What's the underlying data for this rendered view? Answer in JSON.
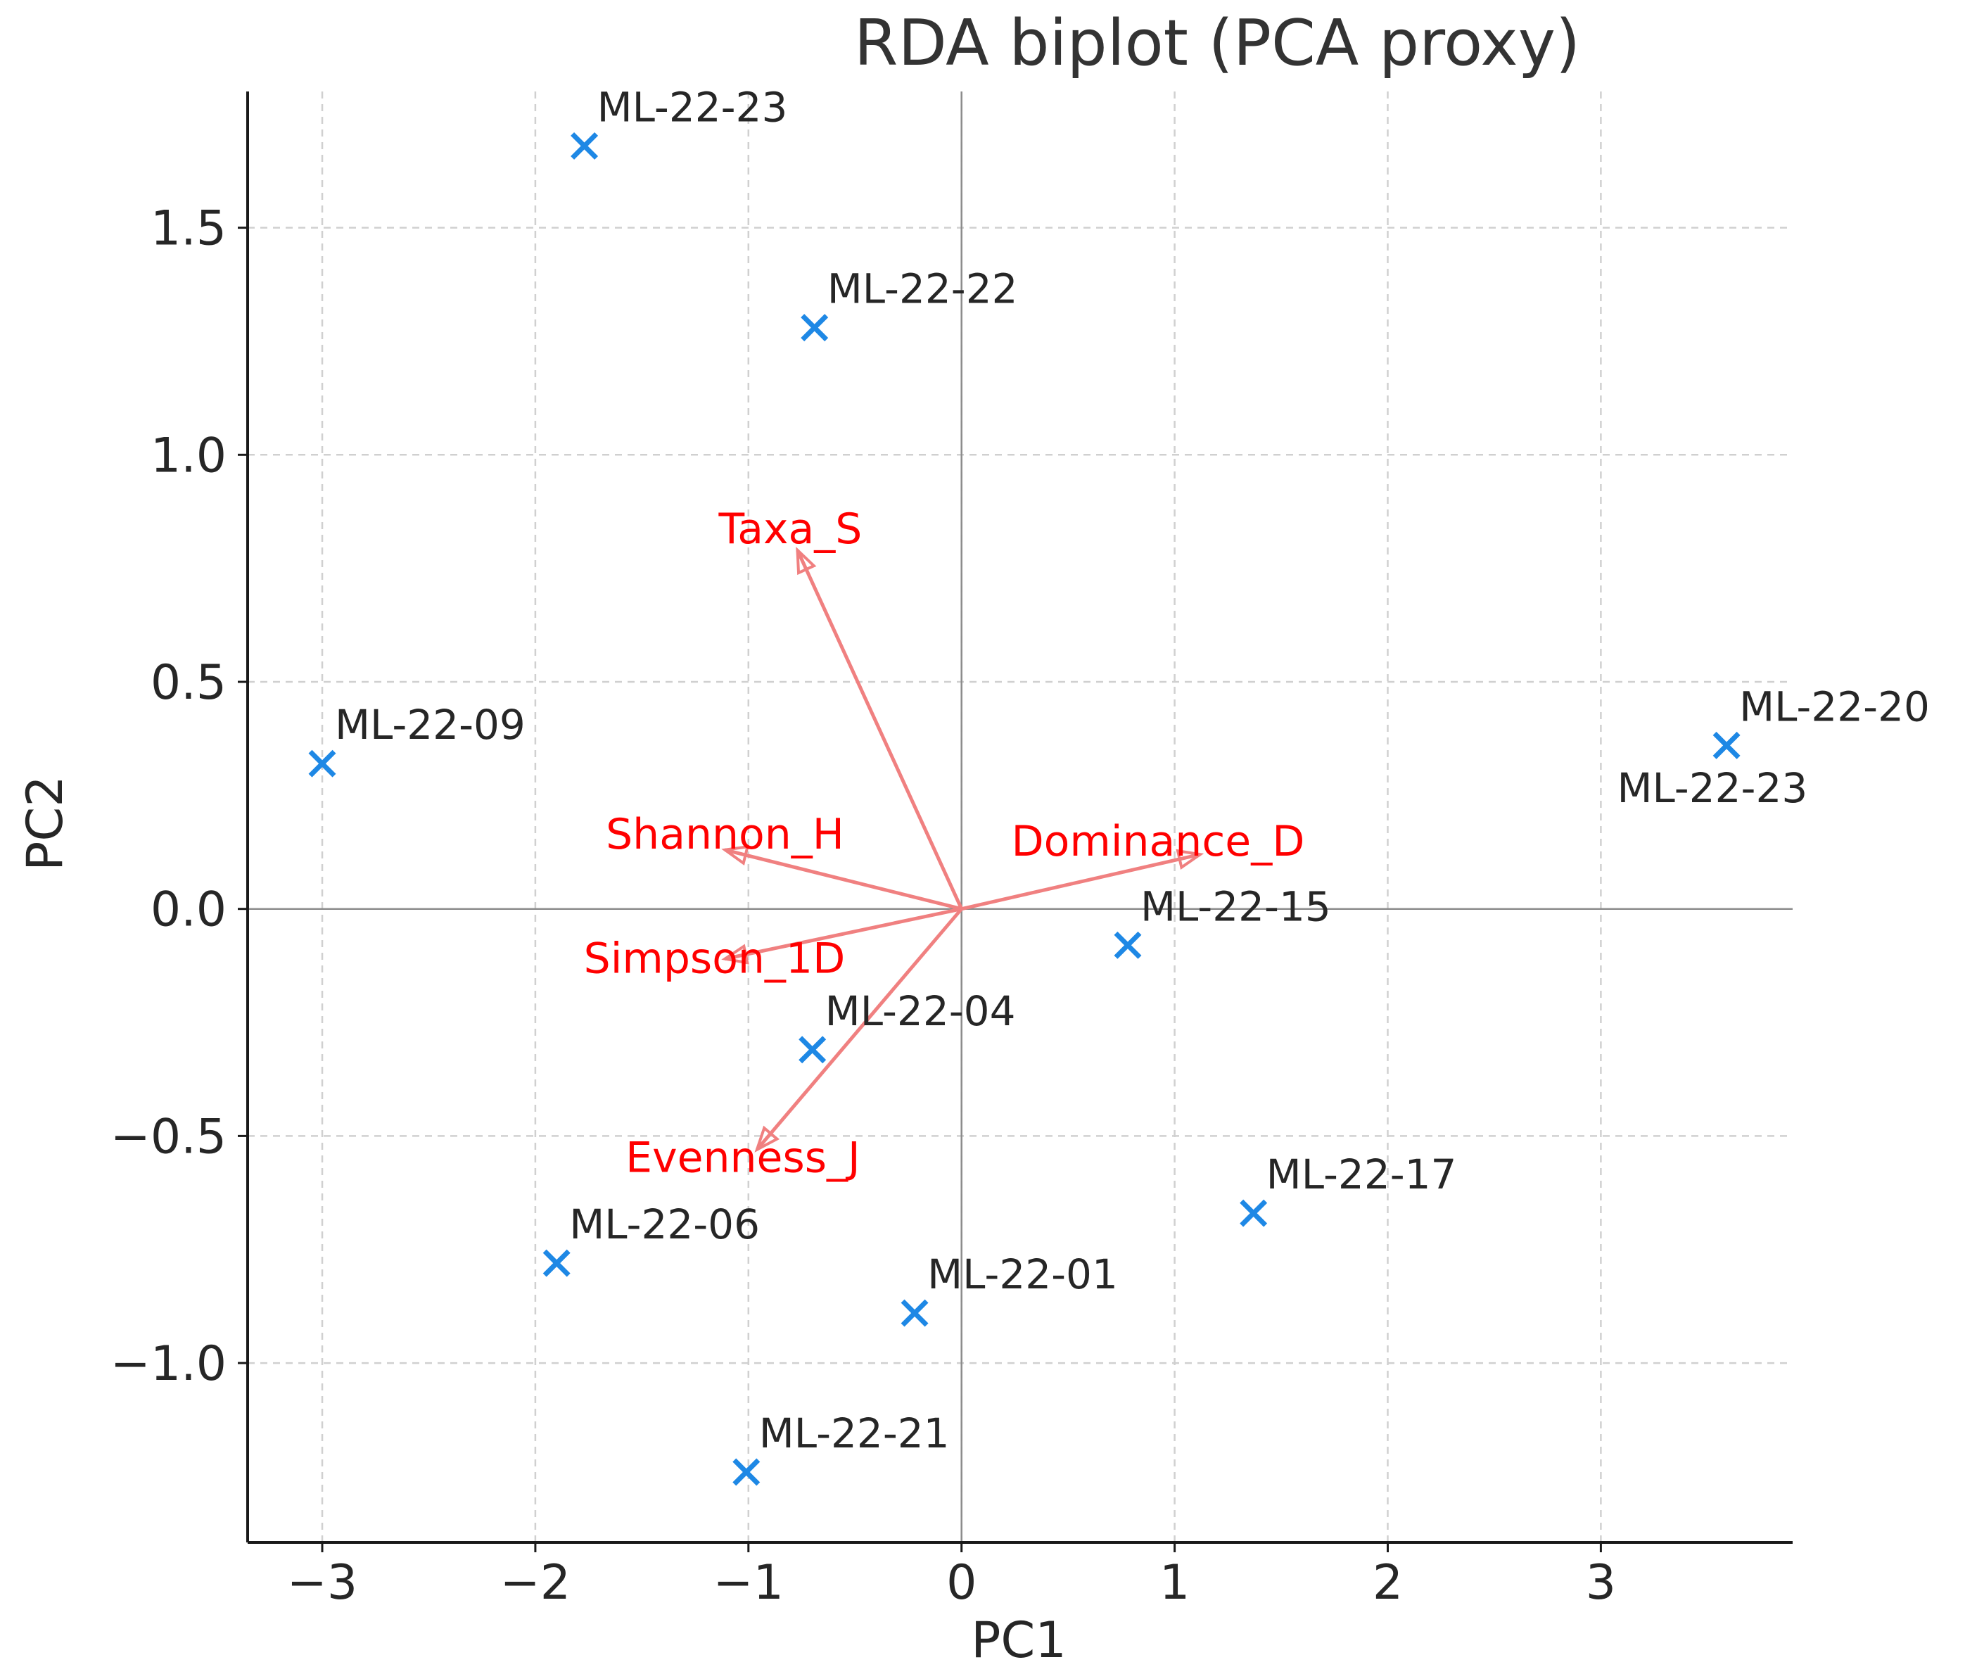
{
  "chart_data": {
    "type": "scatter",
    "title": "RDA biplot (PCA proxy)",
    "xlabel": "PC1",
    "ylabel": "PC2",
    "xlim": [
      -3.35,
      3.9
    ],
    "ylim": [
      -1.395,
      1.8
    ],
    "xticks": [
      -3,
      -2,
      -1,
      0,
      1,
      2,
      3
    ],
    "xtick_labels": [
      "−3",
      "−2",
      "−1",
      "0",
      "1",
      "2",
      "3"
    ],
    "yticks": [
      -1.0,
      -0.5,
      0.0,
      0.5,
      1.0,
      1.5
    ],
    "ytick_labels": [
      "−1.0",
      "−0.5",
      "0.0",
      "0.5",
      "1.0",
      "1.5"
    ],
    "grid": true,
    "colors": {
      "points": "#1e88e5",
      "vectors": "#f08080",
      "vector_labels": "#ff0000"
    },
    "points": [
      {
        "label": "ML-22-23",
        "x": -1.77,
        "y": 1.68
      },
      {
        "label": "ML-22-22",
        "x": -0.69,
        "y": 1.28
      },
      {
        "label": "ML-22-09",
        "x": -3.0,
        "y": 0.32
      },
      {
        "label": "ML-22-20",
        "x": 3.59,
        "y": 0.36
      },
      {
        "label": "ML-22-15",
        "x": 0.78,
        "y": -0.08
      },
      {
        "label": "ML-22-04",
        "x": -0.7,
        "y": -0.31
      },
      {
        "label": "ML-22-17",
        "x": 1.37,
        "y": -0.67
      },
      {
        "label": "ML-22-06",
        "x": -1.9,
        "y": -0.78
      },
      {
        "label": "ML-22-01",
        "x": -0.22,
        "y": -0.89
      },
      {
        "label": "ML-22-21",
        "x": -1.01,
        "y": -1.24
      }
    ],
    "extra_labels": [
      {
        "label": "ML-22-23",
        "x": 3.72,
        "y": 0.26
      }
    ],
    "vectors": [
      {
        "name": "Taxa_S",
        "x": -0.77,
        "y": 0.79
      },
      {
        "name": "Shannon_H",
        "x": -1.11,
        "y": 0.13
      },
      {
        "name": "Dominance_D",
        "x": 1.12,
        "y": 0.12
      },
      {
        "name": "Simpson_1D",
        "x": -1.11,
        "y": -0.11
      },
      {
        "name": "Evenness_J",
        "x": -0.96,
        "y": -0.53
      }
    ]
  }
}
